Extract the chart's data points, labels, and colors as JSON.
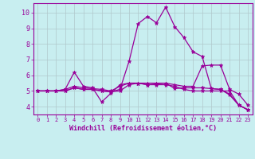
{
  "xlabel": "Windchill (Refroidissement éolien,°C)",
  "background_color": "#c8eef0",
  "line_color": "#990099",
  "grid_color": "#b0c8cc",
  "xlim": [
    -0.5,
    23.5
  ],
  "ylim": [
    3.5,
    10.6
  ],
  "xticks": [
    0,
    1,
    2,
    3,
    4,
    5,
    6,
    7,
    8,
    9,
    10,
    11,
    12,
    13,
    14,
    15,
    16,
    17,
    18,
    19,
    20,
    21,
    22,
    23
  ],
  "yticks": [
    4,
    5,
    6,
    7,
    8,
    9,
    10
  ],
  "series": [
    [
      5.0,
      5.0,
      5.0,
      5.1,
      6.2,
      5.3,
      5.2,
      4.3,
      4.85,
      5.4,
      5.5,
      5.5,
      5.5,
      5.5,
      5.5,
      5.15,
      5.2,
      5.2,
      5.2,
      5.15,
      5.1,
      4.8,
      4.1,
      3.8
    ],
    [
      5.0,
      5.0,
      5.0,
      5.1,
      5.3,
      5.2,
      5.15,
      5.1,
      5.0,
      5.3,
      5.5,
      5.5,
      5.4,
      5.4,
      5.4,
      5.3,
      5.1,
      5.0,
      5.0,
      5.0,
      5.0,
      5.0,
      4.1,
      3.8
    ],
    [
      5.0,
      5.0,
      5.0,
      5.0,
      5.2,
      5.1,
      5.1,
      5.0,
      4.95,
      5.0,
      5.4,
      5.5,
      5.4,
      5.45,
      5.5,
      5.4,
      5.3,
      5.3,
      6.6,
      6.65,
      6.65,
      5.1,
      4.8,
      4.1
    ],
    [
      5.0,
      5.0,
      5.0,
      5.0,
      5.2,
      5.1,
      5.1,
      5.0,
      4.95,
      5.1,
      6.9,
      9.3,
      9.75,
      9.35,
      10.35,
      9.1,
      8.4,
      7.5,
      7.2,
      5.15,
      5.1,
      4.75,
      4.1,
      3.8
    ]
  ]
}
